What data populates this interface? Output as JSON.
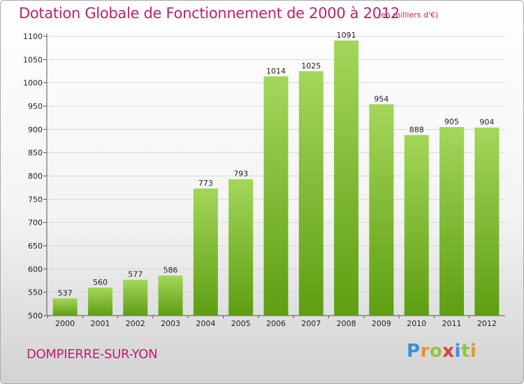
{
  "header": {
    "title": "Dotation Globale de Fonctionnement de 2000 à 2012",
    "subtitle": "(en milliers d'€)"
  },
  "footer": {
    "commune": "DOMPIERRE-SUR-YON",
    "logo_text": "Proxiti"
  },
  "colors": {
    "title": "#c0206b",
    "bar_top": "#a4d65a",
    "bar_bottom": "#5e9e12",
    "logo_letters": [
      "#3a8fd8",
      "#f0902a",
      "#8dc63f",
      "#e23b3b",
      "#3a8fd8",
      "#8dc63f",
      "#f0902a"
    ]
  },
  "chart_data": {
    "type": "bar",
    "title": "Dotation Globale de Fonctionnement de 2000 à 2012",
    "subtitle": "(en milliers d'€)",
    "xlabel": "",
    "ylabel": "",
    "categories": [
      "2000",
      "2001",
      "2002",
      "2003",
      "2004",
      "2005",
      "2006",
      "2007",
      "2008",
      "2009",
      "2010",
      "2011",
      "2012"
    ],
    "values": [
      537,
      560,
      577,
      586,
      773,
      793,
      1014,
      1025,
      1091,
      954,
      888,
      905,
      904
    ],
    "ylim": [
      500,
      1100
    ],
    "yticks": [
      500,
      550,
      600,
      650,
      700,
      750,
      800,
      850,
      900,
      950,
      1000,
      1050,
      1100
    ],
    "grid": true,
    "legend": "none"
  }
}
